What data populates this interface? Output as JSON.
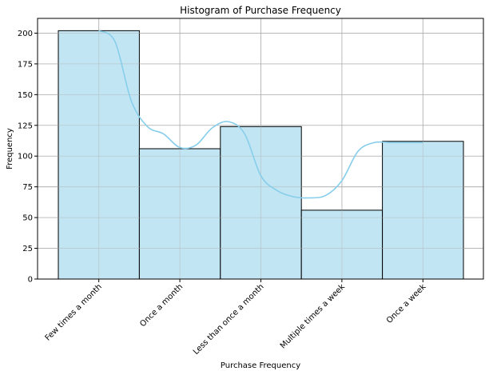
{
  "chart_data": {
    "type": "bar",
    "title": "Histogram of Purchase Frequency",
    "xlabel": "Purchase Frequency",
    "ylabel": "Frequency",
    "categories": [
      "Few times a month",
      "Once a month",
      "Less than once a month",
      "Multiple times a week",
      "Once a week"
    ],
    "values": [
      202,
      106,
      124,
      56,
      112
    ],
    "ylim": [
      0,
      212
    ],
    "yticks": [
      "0",
      "25",
      "50",
      "75",
      "100",
      "125",
      "150",
      "175",
      "200"
    ],
    "grid": true,
    "kde": {
      "x": [
        0.0,
        0.2,
        0.4,
        0.6,
        0.8,
        1.0,
        1.2,
        1.4,
        1.6,
        1.8,
        2.0,
        2.2,
        2.4,
        2.6,
        2.8,
        3.0,
        3.2,
        3.4,
        3.6,
        3.8,
        4.0
      ],
      "y": [
        202,
        193,
        145,
        124,
        118,
        107,
        109,
        123,
        128,
        118,
        84,
        72,
        67,
        66,
        68,
        80,
        104,
        111,
        111,
        111,
        111
      ]
    },
    "colors": {
      "bar_fill": "#c2e5f3",
      "bar_edge": "#000000",
      "kde_line": "#87ceeb",
      "grid": "#b0b0b0"
    }
  }
}
